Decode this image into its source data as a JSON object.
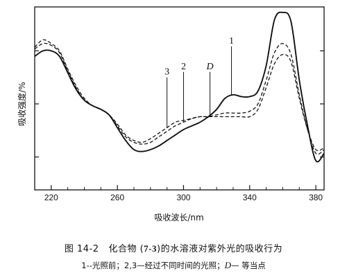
{
  "chart_data": {
    "type": "line",
    "xlabel": "吸收波长/nm",
    "ylabel": "吸收强度/%",
    "xlim": [
      210,
      385
    ],
    "ylim": [
      0,
      1
    ],
    "x_ticks": [
      220,
      260,
      300,
      340,
      380
    ],
    "x_tick_labels": [
      "220",
      "260",
      "300",
      "340",
      "380"
    ],
    "y_ticks": [
      0.18,
      0.47,
      0.76
    ],
    "x_minor_step": 10,
    "grid": false,
    "legend": "none",
    "series": [
      {
        "name": "1",
        "style": "solid",
        "x": [
          210,
          215,
          220,
          225,
          230,
          235,
          240,
          245,
          250,
          255,
          260,
          265,
          270,
          275,
          280,
          285,
          290,
          295,
          300,
          305,
          310,
          315,
          320,
          325,
          330,
          335,
          340,
          345,
          350,
          355,
          360,
          365,
          370,
          375,
          380,
          385
        ],
        "y": [
          0.73,
          0.76,
          0.76,
          0.73,
          0.64,
          0.55,
          0.49,
          0.46,
          0.44,
          0.41,
          0.34,
          0.27,
          0.22,
          0.21,
          0.22,
          0.24,
          0.27,
          0.3,
          0.33,
          0.35,
          0.37,
          0.4,
          0.44,
          0.5,
          0.52,
          0.51,
          0.51,
          0.54,
          0.68,
          0.93,
          0.97,
          0.92,
          0.6,
          0.35,
          0.16,
          0.2
        ]
      },
      {
        "name": "2",
        "style": "dashed",
        "x": [
          210,
          215,
          220,
          225,
          230,
          235,
          240,
          245,
          250,
          255,
          260,
          265,
          270,
          275,
          280,
          285,
          290,
          295,
          300,
          305,
          310,
          315,
          320,
          325,
          330,
          335,
          340,
          345,
          350,
          355,
          360,
          365,
          370,
          375,
          380,
          385
        ],
        "y": [
          0.77,
          0.8,
          0.79,
          0.75,
          0.65,
          0.56,
          0.49,
          0.46,
          0.44,
          0.41,
          0.35,
          0.29,
          0.26,
          0.25,
          0.26,
          0.29,
          0.32,
          0.35,
          0.37,
          0.39,
          0.4,
          0.4,
          0.41,
          0.42,
          0.42,
          0.42,
          0.43,
          0.47,
          0.6,
          0.75,
          0.8,
          0.74,
          0.52,
          0.33,
          0.2,
          0.22
        ]
      },
      {
        "name": "3",
        "style": "dashed",
        "x": [
          210,
          215,
          220,
          225,
          230,
          235,
          240,
          245,
          250,
          255,
          260,
          265,
          270,
          275,
          280,
          285,
          290,
          295,
          300,
          305,
          310,
          315,
          320,
          325,
          330,
          335,
          340,
          345,
          350,
          355,
          360,
          365,
          370,
          375,
          380,
          385
        ],
        "y": [
          0.78,
          0.82,
          0.8,
          0.76,
          0.66,
          0.57,
          0.5,
          0.46,
          0.44,
          0.41,
          0.36,
          0.3,
          0.27,
          0.26,
          0.28,
          0.31,
          0.34,
          0.37,
          0.38,
          0.39,
          0.4,
          0.4,
          0.4,
          0.4,
          0.4,
          0.4,
          0.4,
          0.44,
          0.56,
          0.69,
          0.74,
          0.7,
          0.5,
          0.33,
          0.22,
          0.23
        ]
      }
    ],
    "annotations": [
      {
        "text": "1",
        "target_x": 329,
        "target_y": 0.52,
        "label_y": 0.8
      },
      {
        "text": "2",
        "target_x": 300,
        "target_y": 0.37,
        "label_y": 0.66
      },
      {
        "text": "D",
        "target_x": 316,
        "target_y": 0.4,
        "label_y": 0.66,
        "italic": true
      },
      {
        "text": "3",
        "target_x": 290,
        "target_y": 0.34,
        "label_y": 0.63
      }
    ]
  },
  "caption": {
    "fig_no": "图 14-2",
    "title_before": "化合物 (",
    "compound": "7-3",
    "title_after": ")的水溶液对紫外光的吸收行为",
    "note_before": "1--光照前；2,3—经过不同时间的光照；",
    "note_d": "D",
    "note_after": "— 等当点"
  }
}
